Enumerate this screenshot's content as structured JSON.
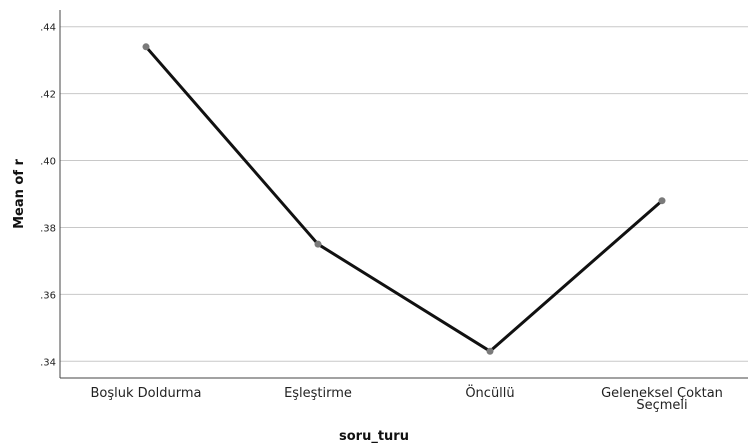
{
  "chart_data": {
    "type": "line",
    "categories": [
      "Boşluk Doldurma",
      "Eşleştirme",
      "Öncüllü",
      "Geleneksel Çoktan Seçmeli"
    ],
    "category_lines": [
      [
        "Boşluk Doldurma"
      ],
      [
        "Eşleştirme"
      ],
      [
        "Öncüllü"
      ],
      [
        "Geleneksel Çoktan",
        "Seçmeli"
      ]
    ],
    "values": [
      0.434,
      0.375,
      0.343,
      0.388
    ],
    "xlabel": "soru_turu",
    "ylabel": "Mean of r",
    "ylim": [
      0.335,
      0.445
    ],
    "yticks": [
      0.34,
      0.36,
      0.38,
      0.4,
      0.42,
      0.44
    ],
    "ytick_labels": [
      ".34",
      ".36",
      ".38",
      ".40",
      ".42",
      ".44"
    ],
    "grid": "horizontal",
    "colors": {
      "line": "#111111",
      "points": "#7a7a7a",
      "grid": "#c8c8c8"
    }
  }
}
